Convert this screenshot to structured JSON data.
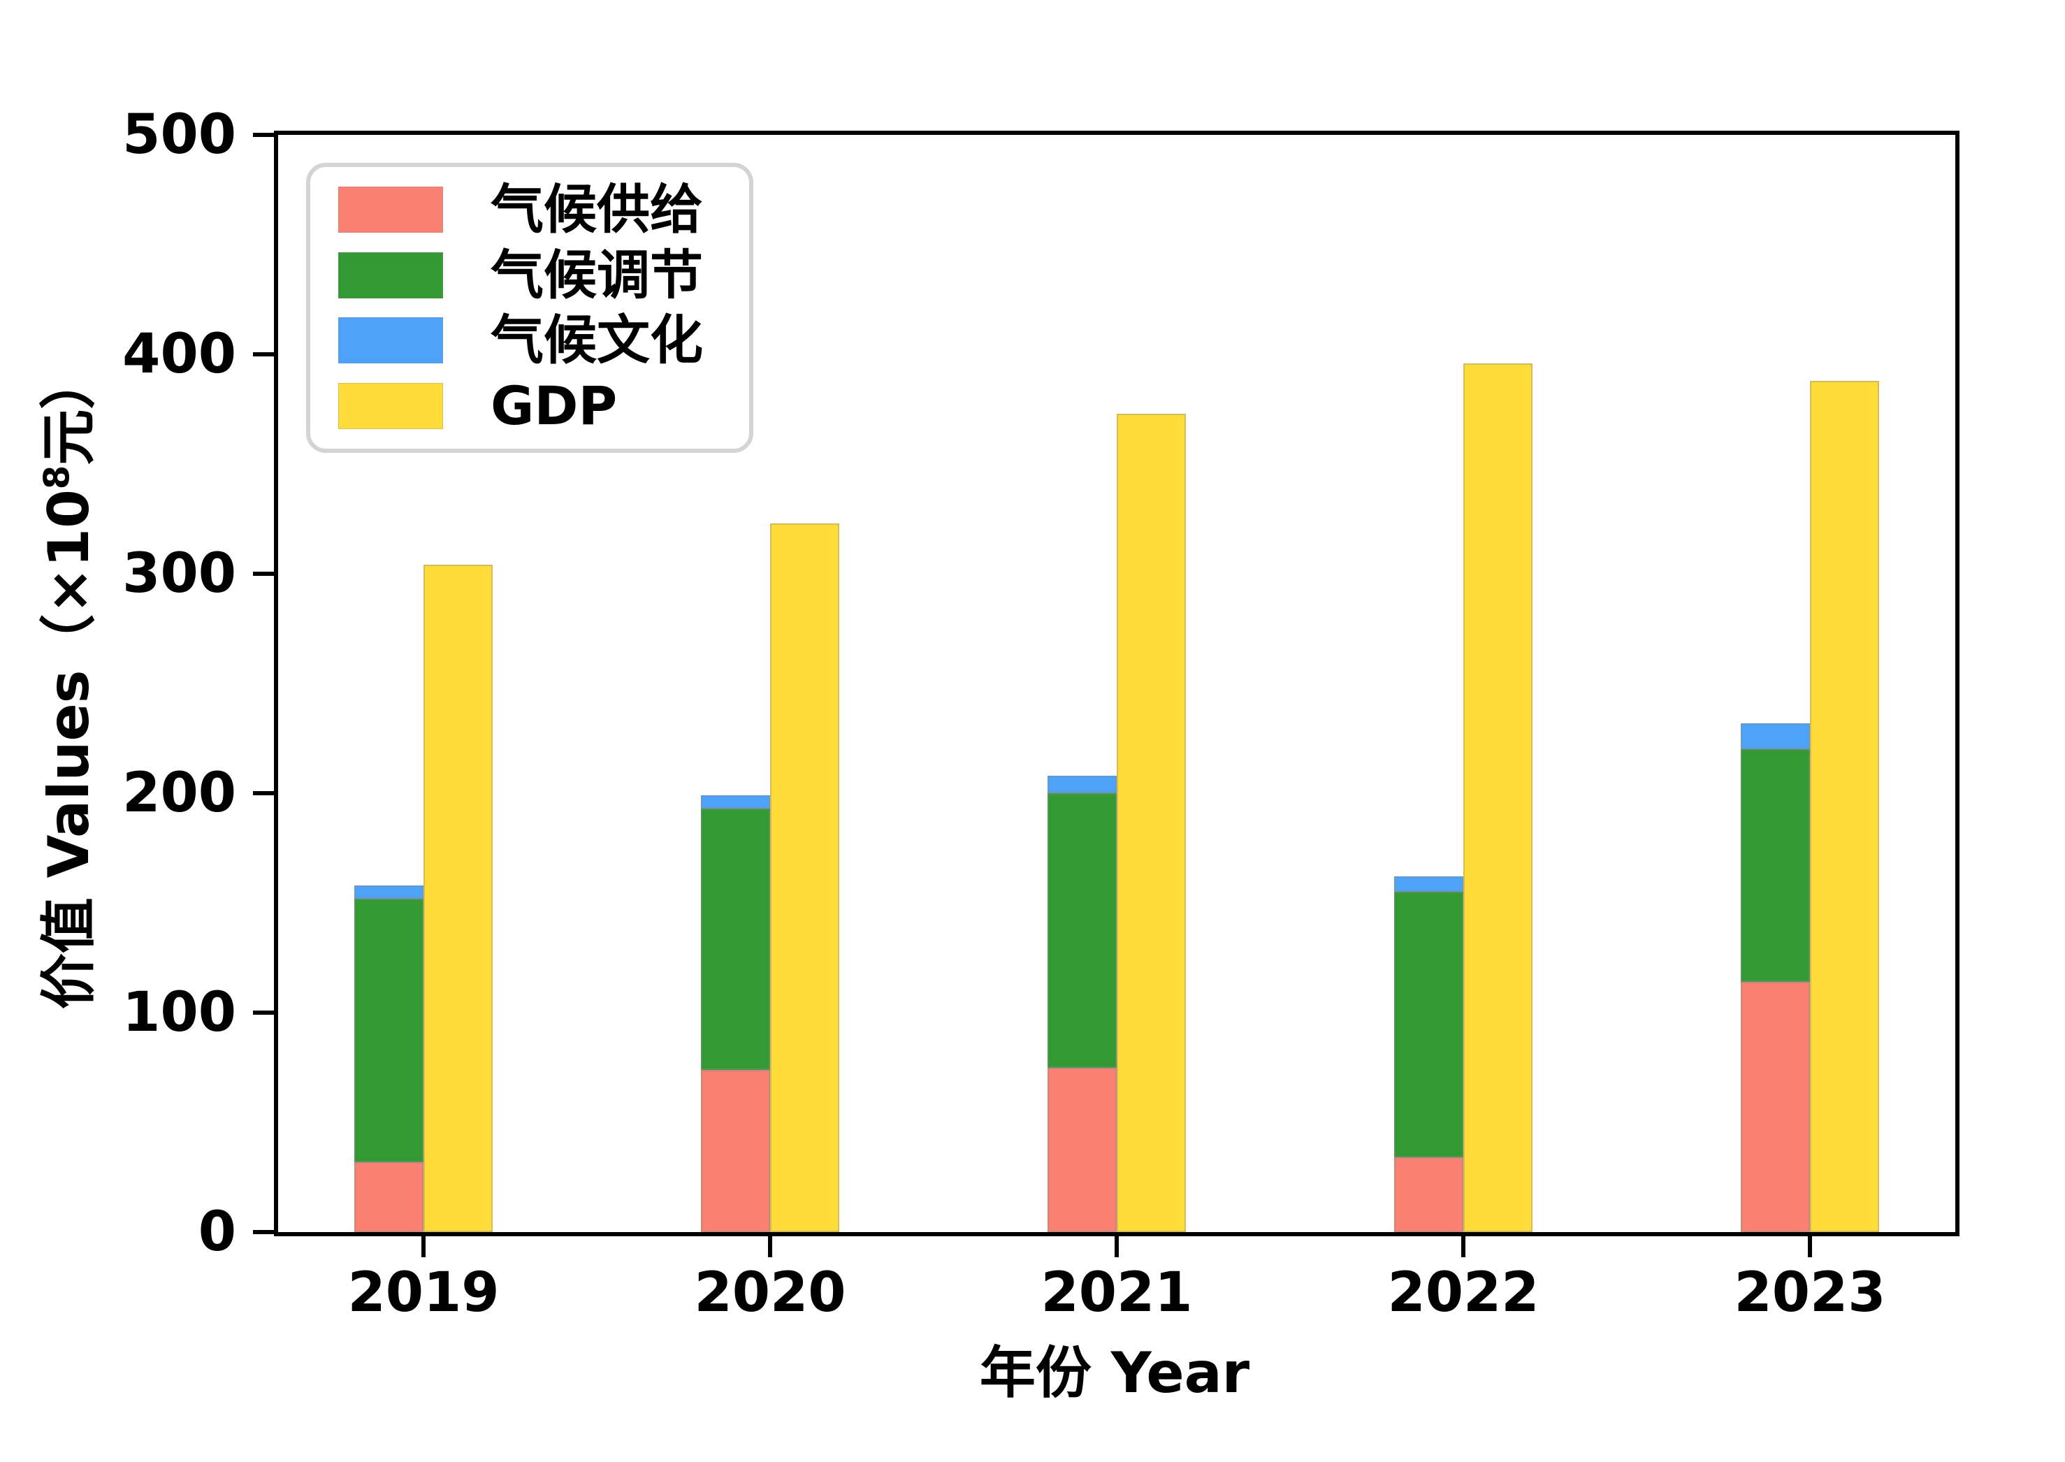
{
  "chart_data": {
    "type": "bar",
    "title": "",
    "categories": [
      "2019",
      "2020",
      "2021",
      "2022",
      "2023"
    ],
    "series": [
      {
        "name": "气候供给",
        "role": "stacked",
        "color": "#fa8072",
        "values": [
          32,
          74,
          75,
          34,
          114
        ]
      },
      {
        "name": "气候调节",
        "role": "stacked",
        "color": "#339933",
        "values": [
          120,
          119,
          125,
          121,
          106
        ]
      },
      {
        "name": "气候文化",
        "role": "stacked",
        "color": "#4da3f7",
        "values": [
          6,
          6,
          8,
          7,
          12
        ]
      },
      {
        "name": "GDP",
        "role": "grouped",
        "color": "#ffdc3a",
        "values": [
          304,
          323,
          373,
          396,
          388
        ]
      }
    ],
    "xlabel": "年份 Year",
    "ylabel": "价值 Values（×10⁸元）",
    "ylim": [
      0,
      500
    ],
    "y_ticks": [
      0,
      100,
      200,
      300,
      400,
      500
    ],
    "grid": false,
    "legend_position": "upper-left"
  },
  "axes": {
    "y_label_pre": "价值 Values（×10",
    "y_label_sup": "8",
    "y_label_post": "元）",
    "x_label": "年份 Year",
    "y_tick_labels": [
      "0",
      "100",
      "200",
      "300",
      "400",
      "500"
    ]
  },
  "legend": {
    "entries": [
      {
        "label": "气候供给",
        "color": "#fa8072"
      },
      {
        "label": "气候调节",
        "color": "#339933"
      },
      {
        "label": "气候文化",
        "color": "#4da3f7"
      },
      {
        "label": "GDP",
        "color": "#ffdc3a"
      }
    ]
  }
}
